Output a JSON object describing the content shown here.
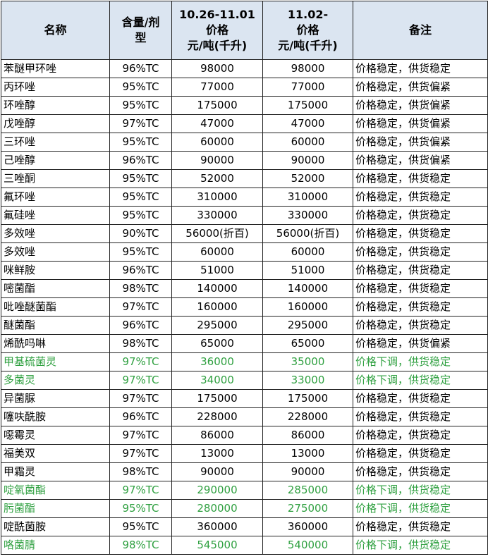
{
  "table": {
    "header": [
      [
        "名称"
      ],
      [
        "含量/剂",
        "型"
      ],
      [
        "10.26-11.01",
        "价格",
        "元/吨(千升)"
      ],
      [
        "11.02-",
        "价格",
        "元/吨(千升)"
      ],
      [
        "备注"
      ]
    ],
    "rows": [
      {
        "cells": [
          "苯醚甲环唑",
          "96%TC",
          "98000",
          "98000",
          "价格稳定，供货稳定"
        ]
      },
      {
        "cells": [
          "丙环唑",
          "95%TC",
          "77000",
          "77000",
          "价格稳定，供货偏紧"
        ]
      },
      {
        "cells": [
          "环唑醇",
          "95%TC",
          "175000",
          "175000",
          "价格稳定，供货偏紧"
        ]
      },
      {
        "cells": [
          "戊唑醇",
          "97%TC",
          "47000",
          "47000",
          "价格稳定，供货偏紧"
        ]
      },
      {
        "cells": [
          "三环唑",
          "95%TC",
          "60000",
          "60000",
          "价格稳定，供货偏紧"
        ]
      },
      {
        "cells": [
          "己唑醇",
          "96%TC",
          "90000",
          "90000",
          "价格稳定，供货偏紧"
        ]
      },
      {
        "cells": [
          "三唑酮",
          "95%TC",
          "52000",
          "52000",
          "价格稳定，供货稳定"
        ]
      },
      {
        "cells": [
          "氟环唑",
          "95%TC",
          "310000",
          "310000",
          "价格稳定，供货稳定"
        ]
      },
      {
        "cells": [
          "氟硅唑",
          "95%TC",
          "330000",
          "330000",
          "价格稳定，供货稳定"
        ]
      },
      {
        "cells": [
          "多效唑",
          "90%TC",
          "56000(折百)",
          "56000(折百)",
          "价格稳定，供货稳定"
        ]
      },
      {
        "cells": [
          "多效唑",
          "95%TC",
          "60000",
          "60000",
          "价格稳定，供货稳定"
        ]
      },
      {
        "cells": [
          "咪鲜胺",
          "96%TC",
          "51000",
          "51000",
          "价格稳定，供货稳定"
        ]
      },
      {
        "cells": [
          "嘧菌酯",
          "98%TC",
          "140000",
          "140000",
          "价格稳定，供货稳定"
        ]
      },
      {
        "cells": [
          "吡唑醚菌酯",
          "97%TC",
          "160000",
          "160000",
          "价格稳定，供货稳定"
        ]
      },
      {
        "cells": [
          "醚菌酯",
          "96%TC",
          "295000",
          "295000",
          "价格稳定，供货稳定"
        ]
      },
      {
        "cells": [
          "烯酰吗啉",
          "98%TC",
          "65000",
          "65000",
          "价格稳定，供货偏紧"
        ]
      },
      {
        "cells": [
          "甲基硫菌灵",
          "97%TC",
          "36000",
          "35000",
          "价格下调，供货稳定"
        ],
        "color": "#2fa040"
      },
      {
        "cells": [
          "多菌灵",
          "97%TC",
          "34000",
          "33000",
          "价格下调，供货稳定"
        ],
        "color": "#2fa040"
      },
      {
        "cells": [
          "异菌脲",
          "97%TC",
          "175000",
          "175000",
          "价格稳定，供货稳定"
        ]
      },
      {
        "cells": [
          "噻呋酰胺",
          "96%TC",
          "228000",
          "228000",
          "价格稳定，供货稳定"
        ]
      },
      {
        "cells": [
          "噁霉灵",
          "97%TC",
          "86000",
          "86000",
          "价格稳定，供货稳定"
        ]
      },
      {
        "cells": [
          "福美双",
          "97%TC",
          "13000",
          "13000",
          "价格稳定，供货稳定"
        ]
      },
      {
        "cells": [
          "甲霜灵",
          "98%TC",
          "90000",
          "90000",
          "价格稳定，供货稳定"
        ]
      },
      {
        "cells": [
          "啶氧菌酯",
          "97%TC",
          "290000",
          "285000",
          "价格下调，供货稳定"
        ],
        "color": "#2fa040"
      },
      {
        "cells": [
          "肟菌酯",
          "95%TC",
          "280000",
          "275000",
          "价格下调，供货稳定"
        ],
        "color": "#2fa040"
      },
      {
        "cells": [
          "啶酰菌胺",
          "95%TC",
          "360000",
          "360000",
          "价格稳定，供货稳定"
        ]
      },
      {
        "cells": [
          "咯菌腈",
          "98%TC",
          "545000",
          "540000",
          "价格下调，供货稳定"
        ],
        "color": "#2fa040"
      }
    ]
  }
}
